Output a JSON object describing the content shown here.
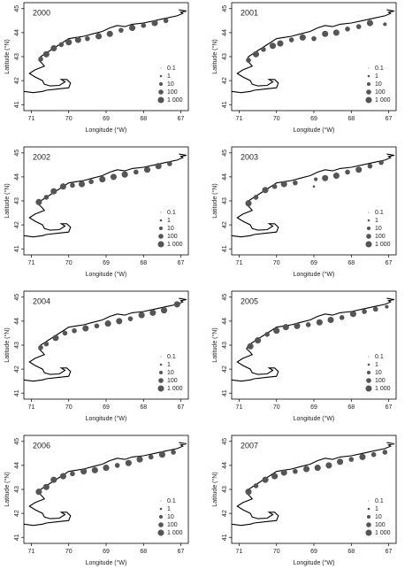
{
  "chart_data": [
    {
      "type": "scatter",
      "title": "2000",
      "x_label": "Longitude (°W)",
      "y_label": "Latitude (°N)",
      "xlim": [
        71.2,
        66.8
      ],
      "ylim": [
        40.75,
        45.25
      ],
      "xticks": [
        71,
        70,
        69,
        68,
        67
      ],
      "yticks": [
        41,
        42,
        43,
        44,
        45
      ],
      "color": "#555555",
      "x": [
        70.75,
        70.6,
        70.4,
        70.2,
        70.0,
        69.75,
        69.5,
        69.2,
        68.9,
        68.6,
        68.3,
        68.0,
        67.7,
        67.4
      ],
      "y": [
        42.9,
        43.1,
        43.35,
        43.5,
        43.6,
        43.7,
        43.75,
        43.85,
        43.95,
        44.1,
        44.2,
        44.3,
        44.4,
        44.5
      ],
      "sizes": [
        100,
        1000,
        1000,
        100,
        1000,
        1000,
        100,
        1000,
        1000,
        100,
        1000,
        100,
        1000,
        100
      ],
      "size_legend": [
        0.1,
        1,
        10,
        100,
        {
          "value": 1000,
          "label": "1 000"
        }
      ]
    },
    {
      "type": "scatter",
      "title": "2001",
      "x_label": "Longitude (°W)",
      "y_label": "Latitude (°N)",
      "xlim": [
        71.2,
        66.8
      ],
      "ylim": [
        40.75,
        45.25
      ],
      "xticks": [
        71,
        70,
        69,
        68,
        67
      ],
      "yticks": [
        41,
        42,
        43,
        44,
        45
      ],
      "color": "#555555",
      "x": [
        70.75,
        70.55,
        70.35,
        70.1,
        69.9,
        69.6,
        69.3,
        69.0,
        68.7,
        68.4,
        68.1,
        67.8,
        67.5,
        67.1
      ],
      "y": [
        42.85,
        43.1,
        43.3,
        43.45,
        43.55,
        43.7,
        43.8,
        43.75,
        43.95,
        44.0,
        44.15,
        44.25,
        44.4,
        44.35
      ],
      "sizes": [
        100,
        1000,
        100,
        1000,
        1000,
        100,
        1000,
        100,
        1000,
        1000,
        100,
        100,
        1000,
        10
      ],
      "size_legend": [
        0.1,
        1,
        10,
        100,
        {
          "value": 1000,
          "label": "1 000"
        }
      ]
    },
    {
      "type": "scatter",
      "title": "2002",
      "x_label": "Longitude (°W)",
      "y_label": "Latitude (°N)",
      "xlim": [
        71.2,
        66.8
      ],
      "ylim": [
        40.75,
        45.25
      ],
      "xticks": [
        71,
        70,
        69,
        68,
        67
      ],
      "yticks": [
        41,
        42,
        43,
        44,
        45
      ],
      "color": "#555555",
      "x": [
        70.8,
        70.6,
        70.4,
        70.15,
        69.9,
        69.65,
        69.4,
        69.1,
        68.8,
        68.5,
        68.2,
        67.9,
        67.6,
        67.3
      ],
      "y": [
        42.95,
        43.15,
        43.4,
        43.6,
        43.65,
        43.7,
        43.8,
        43.9,
        44.0,
        44.1,
        44.2,
        44.3,
        44.45,
        44.55
      ],
      "sizes": [
        1000,
        100,
        1000,
        1000,
        100,
        1000,
        100,
        1000,
        1000,
        1000,
        100,
        1000,
        1000,
        100
      ],
      "size_legend": [
        0.1,
        1,
        10,
        100,
        {
          "value": 1000,
          "label": "1 000"
        }
      ]
    },
    {
      "type": "scatter",
      "title": "2003",
      "x_label": "Longitude (°W)",
      "y_label": "Latitude (°N)",
      "xlim": [
        71.2,
        66.8
      ],
      "ylim": [
        40.75,
        45.25
      ],
      "xticks": [
        71,
        70,
        69,
        68,
        67
      ],
      "yticks": [
        41,
        42,
        43,
        44,
        45
      ],
      "color": "#555555",
      "x": [
        70.75,
        70.55,
        70.3,
        70.05,
        69.8,
        69.5,
        69.0,
        68.7,
        68.4,
        68.1,
        67.8,
        67.5,
        67.2,
        68.95
      ],
      "y": [
        42.9,
        43.15,
        43.45,
        43.6,
        43.7,
        43.75,
        43.6,
        43.95,
        44.05,
        44.2,
        44.3,
        44.45,
        44.6,
        43.9
      ],
      "sizes": [
        1000,
        100,
        1000,
        100,
        1000,
        100,
        1,
        1000,
        1000,
        100,
        1000,
        100,
        100,
        10
      ],
      "size_legend": [
        0.1,
        1,
        10,
        100,
        {
          "value": 1000,
          "label": "1 000"
        }
      ]
    },
    {
      "type": "scatter",
      "title": "2004",
      "x_label": "Longitude (°W)",
      "y_label": "Latitude (°N)",
      "xlim": [
        71.2,
        66.8
      ],
      "ylim": [
        40.75,
        45.25
      ],
      "xticks": [
        71,
        70,
        69,
        68,
        67
      ],
      "yticks": [
        41,
        42,
        43,
        44,
        45
      ],
      "color": "#555555",
      "x": [
        70.75,
        70.6,
        70.35,
        70.1,
        69.85,
        69.55,
        69.25,
        68.95,
        68.65,
        68.35,
        68.05,
        67.75,
        67.45,
        67.1
      ],
      "y": [
        42.9,
        43.05,
        43.3,
        43.5,
        43.6,
        43.7,
        43.8,
        43.9,
        44.0,
        44.1,
        44.25,
        44.35,
        44.45,
        44.7
      ],
      "sizes": [
        100,
        100,
        1000,
        100,
        100,
        1000,
        100,
        1000,
        1000,
        100,
        1000,
        1000,
        1000,
        1000
      ],
      "size_legend": [
        0.1,
        1,
        10,
        100,
        {
          "value": 1000,
          "label": "1 000"
        }
      ]
    },
    {
      "type": "scatter",
      "title": "2005",
      "x_label": "Longitude (°W)",
      "y_label": "Latitude (°N)",
      "xlim": [
        71.2,
        66.8
      ],
      "ylim": [
        40.75,
        45.25
      ],
      "xticks": [
        71,
        70,
        69,
        68,
        67
      ],
      "yticks": [
        41,
        42,
        43,
        44,
        45
      ],
      "color": "#555555",
      "x": [
        70.7,
        70.5,
        70.25,
        70.0,
        69.75,
        69.45,
        69.15,
        68.85,
        68.55,
        68.25,
        67.95,
        67.65,
        67.35,
        67.05
      ],
      "y": [
        42.95,
        43.2,
        43.45,
        43.6,
        43.75,
        43.8,
        43.85,
        43.95,
        44.05,
        44.15,
        44.3,
        44.4,
        44.5,
        44.6
      ],
      "sizes": [
        1000,
        1000,
        100,
        1000,
        1000,
        1000,
        100,
        1000,
        1000,
        100,
        1000,
        100,
        100,
        10
      ],
      "size_legend": [
        0.1,
        1,
        10,
        100,
        {
          "value": 1000,
          "label": "1 000"
        }
      ]
    },
    {
      "type": "scatter",
      "title": "2006",
      "x_label": "Longitude (°W)",
      "y_label": "Latitude (°N)",
      "xlim": [
        71.2,
        66.8
      ],
      "ylim": [
        40.75,
        45.25
      ],
      "xticks": [
        71,
        70,
        69,
        68,
        67
      ],
      "yticks": [
        41,
        42,
        43,
        44,
        45
      ],
      "color": "#555555",
      "x": [
        70.8,
        70.6,
        70.4,
        70.15,
        69.9,
        69.6,
        69.3,
        69.0,
        68.7,
        68.4,
        68.1,
        67.8,
        67.5,
        67.2
      ],
      "y": [
        42.9,
        43.1,
        43.4,
        43.55,
        43.65,
        43.75,
        43.8,
        43.9,
        44.0,
        44.1,
        44.25,
        44.35,
        44.45,
        44.55
      ],
      "sizes": [
        1000,
        1000,
        1000,
        1000,
        100,
        1000,
        1000,
        1000,
        100,
        1000,
        1000,
        100,
        1000,
        100
      ],
      "size_legend": [
        0.1,
        1,
        10,
        100,
        {
          "value": 1000,
          "label": "1 000"
        }
      ]
    },
    {
      "type": "scatter",
      "title": "2007",
      "x_label": "Longitude (°W)",
      "y_label": "Latitude (°N)",
      "xlim": [
        71.2,
        66.8
      ],
      "ylim": [
        40.75,
        45.25
      ],
      "xticks": [
        71,
        70,
        69,
        68,
        67
      ],
      "yticks": [
        41,
        42,
        43,
        44,
        45
      ],
      "color": "#555555",
      "x": [
        70.75,
        70.55,
        70.3,
        70.05,
        69.8,
        69.5,
        69.2,
        68.9,
        68.6,
        68.3,
        68.0,
        67.7,
        67.4,
        67.1
      ],
      "y": [
        42.9,
        43.15,
        43.4,
        43.55,
        43.7,
        43.75,
        43.85,
        43.9,
        44.0,
        44.15,
        44.25,
        44.35,
        44.45,
        44.55
      ],
      "sizes": [
        1000,
        100,
        1000,
        1000,
        1000,
        100,
        1000,
        1000,
        1000,
        1000,
        100,
        1000,
        100,
        100
      ],
      "size_legend": [
        0.1,
        1,
        10,
        100,
        {
          "value": 1000,
          "label": "1 000"
        }
      ]
    }
  ]
}
